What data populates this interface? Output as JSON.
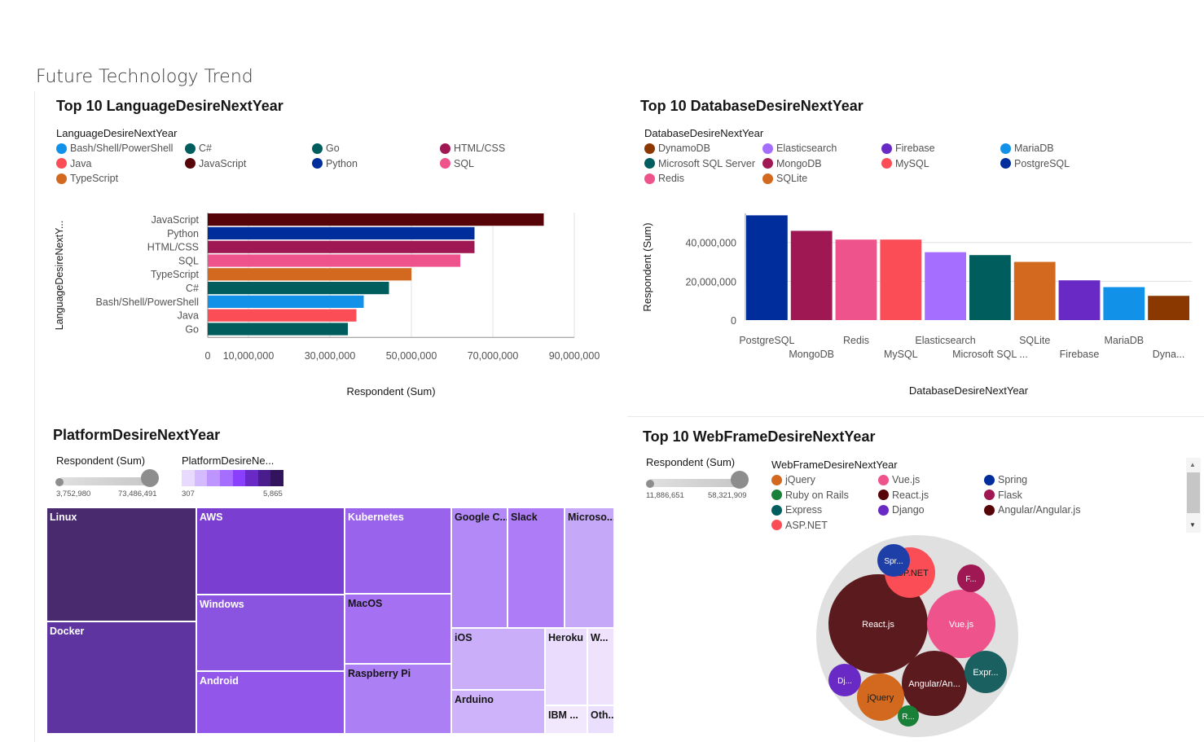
{
  "page_title": "Future Technology Trend",
  "chart_data": [
    {
      "id": "language",
      "type": "bar",
      "orientation": "horizontal",
      "title": "Top 10 LanguageDesireNextYear",
      "legend_title": "LanguageDesireNextYear",
      "legend": [
        {
          "label": "Bash/Shell/PowerShell",
          "color": "#1192e8"
        },
        {
          "label": "C#",
          "color": "#005d5d"
        },
        {
          "label": "Go",
          "color": "#005d5d"
        },
        {
          "label": "HTML/CSS",
          "color": "#9f1853"
        },
        {
          "label": "Java",
          "color": "#fa4d56"
        },
        {
          "label": "JavaScript",
          "color": "#570408"
        },
        {
          "label": "Python",
          "color": "#002d9c"
        },
        {
          "label": "SQL",
          "color": "#ee538b"
        },
        {
          "label": "TypeScript",
          "color": "#d2691e"
        }
      ],
      "categories": [
        "JavaScript",
        "Python",
        "HTML/CSS",
        "SQL",
        "TypeScript",
        "C#",
        "Bash/Shell/PowerShell",
        "Java",
        "Go"
      ],
      "values": [
        82500000,
        65500000,
        65500000,
        62000000,
        50000000,
        44500000,
        38300000,
        36500000,
        34400000
      ],
      "colors": [
        "#570408",
        "#002d9c",
        "#9f1853",
        "#ee538b",
        "#d2691e",
        "#005d5d",
        "#1192e8",
        "#fa4d56",
        "#005d5d"
      ],
      "xlabel": "Respondent (Sum)",
      "ylabel": "LanguageDesireNextY...",
      "xlim": [
        0,
        90000000
      ],
      "ticks": [
        0,
        10000000,
        30000000,
        50000000,
        70000000,
        90000000
      ],
      "tick_labels": [
        "0",
        "10,000,000",
        "30,000,000",
        "50,000,000",
        "70,000,000",
        "90,000,000"
      ]
    },
    {
      "id": "database",
      "type": "bar",
      "title": "Top 10 DatabaseDesireNextYear",
      "legend_title": "DatabaseDesireNextYear",
      "legend": [
        {
          "label": "DynamoDB",
          "color": "#8a3800"
        },
        {
          "label": "Elasticsearch",
          "color": "#a56eff"
        },
        {
          "label": "Firebase",
          "color": "#6929c4"
        },
        {
          "label": "MariaDB",
          "color": "#1192e8"
        },
        {
          "label": "Microsoft SQL Server",
          "color": "#005d5d"
        },
        {
          "label": "MongoDB",
          "color": "#9f1853"
        },
        {
          "label": "MySQL",
          "color": "#fa4d56"
        },
        {
          "label": "PostgreSQL",
          "color": "#002d9c"
        },
        {
          "label": "Redis",
          "color": "#ee538b"
        },
        {
          "label": "SQLite",
          "color": "#d2691e"
        }
      ],
      "categories": [
        "PostgreSQL",
        "MongoDB",
        "Redis",
        "MySQL",
        "Elasticsearch",
        "Microsoft SQL ...",
        "SQLite",
        "Firebase",
        "MariaDB",
        "Dyna..."
      ],
      "values": [
        54000000,
        46000000,
        41500000,
        41500000,
        35000000,
        33500000,
        30000000,
        20500000,
        17000000,
        12500000
      ],
      "colors": [
        "#002d9c",
        "#9f1853",
        "#ee538b",
        "#fa4d56",
        "#a56eff",
        "#005d5d",
        "#d2691e",
        "#6929c4",
        "#1192e8",
        "#8a3800"
      ],
      "xlabel": "DatabaseDesireNextYear",
      "ylabel": "Respondent (Sum)",
      "ylim": [
        0,
        55000000
      ],
      "ticks": [
        0,
        20000000,
        40000000
      ],
      "tick_labels": [
        "0",
        "20,000,000",
        "40,000,000"
      ]
    },
    {
      "id": "platform",
      "type": "treemap",
      "title": "PlatformDesireNextYear",
      "size_legend": {
        "title": "Respondent (Sum)",
        "min": "3,752,980",
        "max": "73,486,491"
      },
      "color_legend": {
        "title": "PlatformDesireNe...",
        "min": "307",
        "max": "5,865",
        "colors": [
          "#e8daff",
          "#d4bbff",
          "#be95ff",
          "#a56eff",
          "#8a3ffc",
          "#6929c4",
          "#491d8b",
          "#31135e"
        ]
      },
      "items": [
        {
          "label": "Linux",
          "color": "#4a2a6e",
          "dark": true
        },
        {
          "label": "Docker",
          "color": "#5e35a0",
          "dark": true
        },
        {
          "label": "AWS",
          "color": "#7a3fd0",
          "dark": true
        },
        {
          "label": "Windows",
          "color": "#8a54e0",
          "dark": true
        },
        {
          "label": "Android",
          "color": "#9257ea",
          "dark": true
        },
        {
          "label": "Kubernetes",
          "color": "#9a63ec",
          "dark": true
        },
        {
          "label": "MacOS",
          "color": "#a571f2",
          "dark": false
        },
        {
          "label": "Raspberry Pi",
          "color": "#ad7ff5",
          "dark": false
        },
        {
          "label": "Google C...",
          "color": "#b389f8",
          "dark": false
        },
        {
          "label": "Slack",
          "color": "#ae7cf6",
          "dark": false
        },
        {
          "label": "Microso...",
          "color": "#c6a8f8",
          "dark": false
        },
        {
          "label": "iOS",
          "color": "#cbaefa",
          "dark": false
        },
        {
          "label": "Arduino",
          "color": "#cfb3fa",
          "dark": false
        },
        {
          "label": "Heroku",
          "color": "#eadcfd",
          "dark": false
        },
        {
          "label": "W...",
          "color": "#eee2fd",
          "dark": false
        },
        {
          "label": "IBM ...",
          "color": "#f1e8fe",
          "dark": false
        },
        {
          "label": "Oth...",
          "color": "#eadffd",
          "dark": false
        }
      ]
    },
    {
      "id": "webframe",
      "type": "bubble-pack",
      "title": "Top 10 WebFrameDesireNextYear",
      "size_legend": {
        "title": "Respondent (Sum)",
        "min": "11,886,651",
        "max": "58,321,909"
      },
      "legend_title": "WebFrameDesireNextYear",
      "legend": [
        {
          "label": "jQuery",
          "color": "#d2691e"
        },
        {
          "label": "Vue.js",
          "color": "#ee538b"
        },
        {
          "label": "Spring",
          "color": "#002d9c"
        },
        {
          "label": "Ruby on Rails",
          "color": "#198038"
        },
        {
          "label": "React.js",
          "color": "#570408"
        },
        {
          "label": "Flask",
          "color": "#9f1853"
        },
        {
          "label": "Express",
          "color": "#005d5d"
        },
        {
          "label": "Django",
          "color": "#6929c4"
        },
        {
          "label": "Angular/Angular.js",
          "color": "#570408"
        },
        {
          "label": "ASP.NET",
          "color": "#fa4d56"
        }
      ],
      "bubbles": [
        {
          "label": "React.js",
          "value": 58321909,
          "color": "#5b1a1e"
        },
        {
          "label": "Vue.js",
          "value": 40000000,
          "color": "#ee538b"
        },
        {
          "label": "Angular/An...",
          "value": 37000000,
          "color": "#5b1a1e"
        },
        {
          "label": "ASP.NET",
          "value": 24000000,
          "color": "#fa4d56"
        },
        {
          "label": "jQuery",
          "value": 22000000,
          "color": "#d2691e"
        },
        {
          "label": "Expr...",
          "value": 18000000,
          "color": "#1a6060"
        },
        {
          "label": "Spr...",
          "value": 14000000,
          "color": "#1f3fa8"
        },
        {
          "label": "Dj...",
          "value": 12800000,
          "color": "#6929c4"
        },
        {
          "label": "F...",
          "value": 12000000,
          "color": "#9f1853"
        },
        {
          "label": "R...",
          "value": 11886651,
          "color": "#198038"
        }
      ]
    }
  ]
}
